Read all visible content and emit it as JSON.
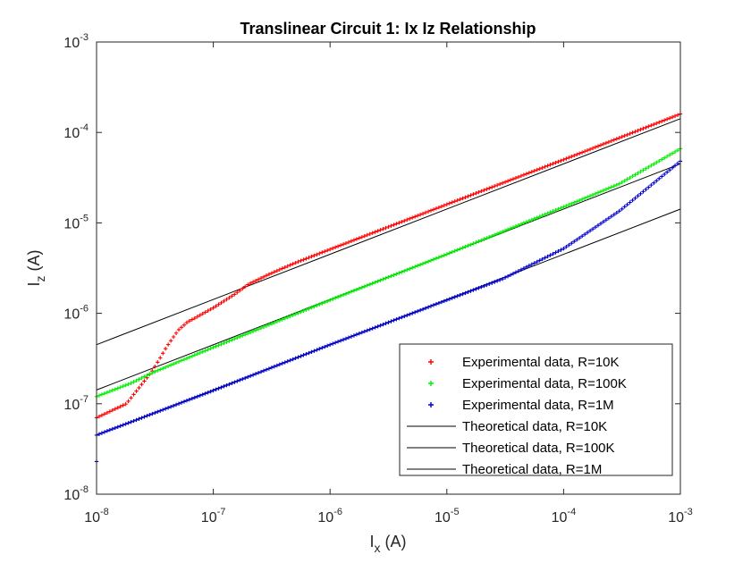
{
  "chart_data": {
    "type": "scatter",
    "title": "Translinear Circuit 1: Ix Iz Relationship",
    "xlabel": {
      "base": "I",
      "sub": "x",
      "unit": " (A)"
    },
    "ylabel": {
      "base": "I",
      "sub": "z",
      "unit": " (A)"
    },
    "xscale": "log",
    "yscale": "log",
    "xlim": [
      1e-08,
      0.001
    ],
    "ylim": [
      1e-08,
      0.001
    ],
    "x_ticks": [
      {
        "value": 1e-08,
        "base": "10",
        "exp": "-8"
      },
      {
        "value": 1e-07,
        "base": "10",
        "exp": "-7"
      },
      {
        "value": 1e-06,
        "base": "10",
        "exp": "-6"
      },
      {
        "value": 1e-05,
        "base": "10",
        "exp": "-5"
      },
      {
        "value": 0.0001,
        "base": "10",
        "exp": "-4"
      },
      {
        "value": 0.001,
        "base": "10",
        "exp": "-3"
      }
    ],
    "y_ticks": [
      {
        "value": 1e-08,
        "base": "10",
        "exp": "-8"
      },
      {
        "value": 1e-07,
        "base": "10",
        "exp": "-7"
      },
      {
        "value": 1e-06,
        "base": "10",
        "exp": "-6"
      },
      {
        "value": 1e-05,
        "base": "10",
        "exp": "-5"
      },
      {
        "value": 0.0001,
        "base": "10",
        "exp": "-4"
      },
      {
        "value": 0.001,
        "base": "10",
        "exp": "-3"
      }
    ],
    "grid": false,
    "legend_position": "bottom-right",
    "series": [
      {
        "name": "Experimental data, R=10K",
        "kind": "markers",
        "color": "#ff0000",
        "x": [
          1e-08,
          1.8e-08,
          3e-08,
          3.5e-08,
          4e-08,
          5e-08,
          6e-08,
          7e-08,
          8e-08,
          1e-07,
          1.5e-07,
          2e-07,
          3e-07,
          5e-07,
          1e-06,
          1e-05,
          0.0001,
          0.001
        ],
        "y": [
          7e-08,
          1e-07,
          2.3e-07,
          3.2e-07,
          4.3e-07,
          6.5e-07,
          8e-07,
          8.9e-07,
          9.8e-07,
          1.15e-06,
          1.6e-06,
          2.1e-06,
          2.7e-06,
          3.6e-06,
          5.1e-06,
          1.6e-05,
          5e-05,
          0.00016
        ]
      },
      {
        "name": "Experimental data, R=100K",
        "kind": "markers",
        "color": "#00ee00",
        "x": [
          1e-08,
          2e-08,
          3e-08,
          5e-08,
          1e-07,
          1e-06,
          1e-05,
          3e-05,
          0.0001,
          0.0003,
          0.001
        ],
        "y": [
          1.2e-07,
          1.7e-07,
          2.2e-07,
          2.9e-07,
          4.2e-07,
          1.4e-06,
          4.5e-06,
          8e-06,
          1.5e-05,
          2.7e-05,
          6.6e-05
        ]
      },
      {
        "name": "Experimental data, R=1M",
        "kind": "markers",
        "color": "#0000cc",
        "x": [
          1e-08,
          1e-07,
          1e-06,
          1e-05,
          3e-05,
          0.0001,
          0.0003,
          0.001
        ],
        "y": [
          4.5e-08,
          1.4e-07,
          4.5e-07,
          1.4e-06,
          2.4e-06,
          5.2e-06,
          1.35e-05,
          4.8e-05
        ],
        "outlier": {
          "x": 1e-08,
          "y": 2.3e-08
        }
      },
      {
        "name": "Theoretical data, R=10K",
        "kind": "line",
        "color": "#000000",
        "x": [
          1e-08,
          0.001
        ],
        "y": [
          4.5e-07,
          0.000142
        ]
      },
      {
        "name": "Theoretical data, R=100K",
        "kind": "line",
        "color": "#000000",
        "x": [
          1e-08,
          0.001
        ],
        "y": [
          1.42e-07,
          4.5e-05
        ]
      },
      {
        "name": "Theoretical data, R=1M",
        "kind": "line",
        "color": "#000000",
        "x": [
          1e-08,
          0.001
        ],
        "y": [
          4.5e-08,
          1.42e-05
        ]
      }
    ]
  }
}
